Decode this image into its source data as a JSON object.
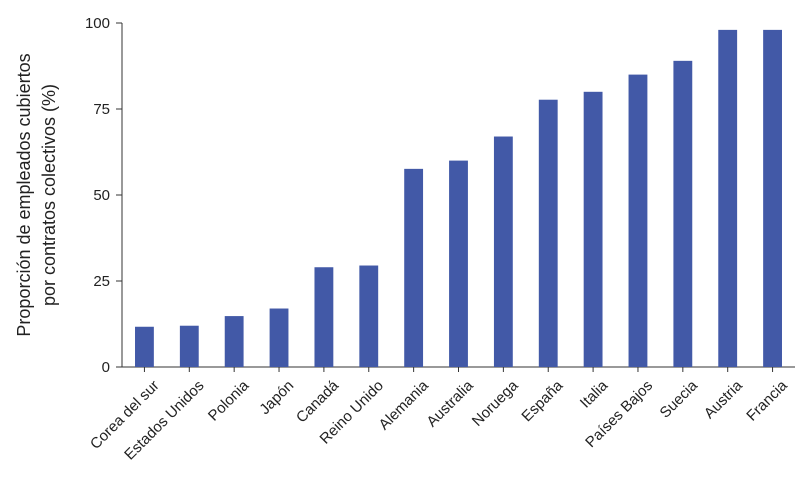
{
  "chart_data": {
    "type": "bar",
    "title": "",
    "xlabel": "",
    "ylabel_lines": [
      "Proporción de empleados cubiertos",
      "por contratos colectivos (%)"
    ],
    "categories": [
      "Corea del sur",
      "Estados Unidos",
      "Polonia",
      "Japón",
      "Canadá",
      "Reino Unido",
      "Alemania",
      "Australia",
      "Noruega",
      "España",
      "Italia",
      "Países Bajos",
      "Suecia",
      "Austria",
      "Francia"
    ],
    "values": [
      11.7,
      12,
      14.8,
      17,
      29,
      29.5,
      57.6,
      60,
      67,
      77.7,
      80,
      85,
      89,
      98,
      98
    ],
    "ylim": [
      0,
      100
    ],
    "yticks": [
      0,
      25,
      50,
      75,
      100
    ],
    "grid": false,
    "legend": "none",
    "bar_color": "#4259a7",
    "axis_color": "#333333"
  }
}
